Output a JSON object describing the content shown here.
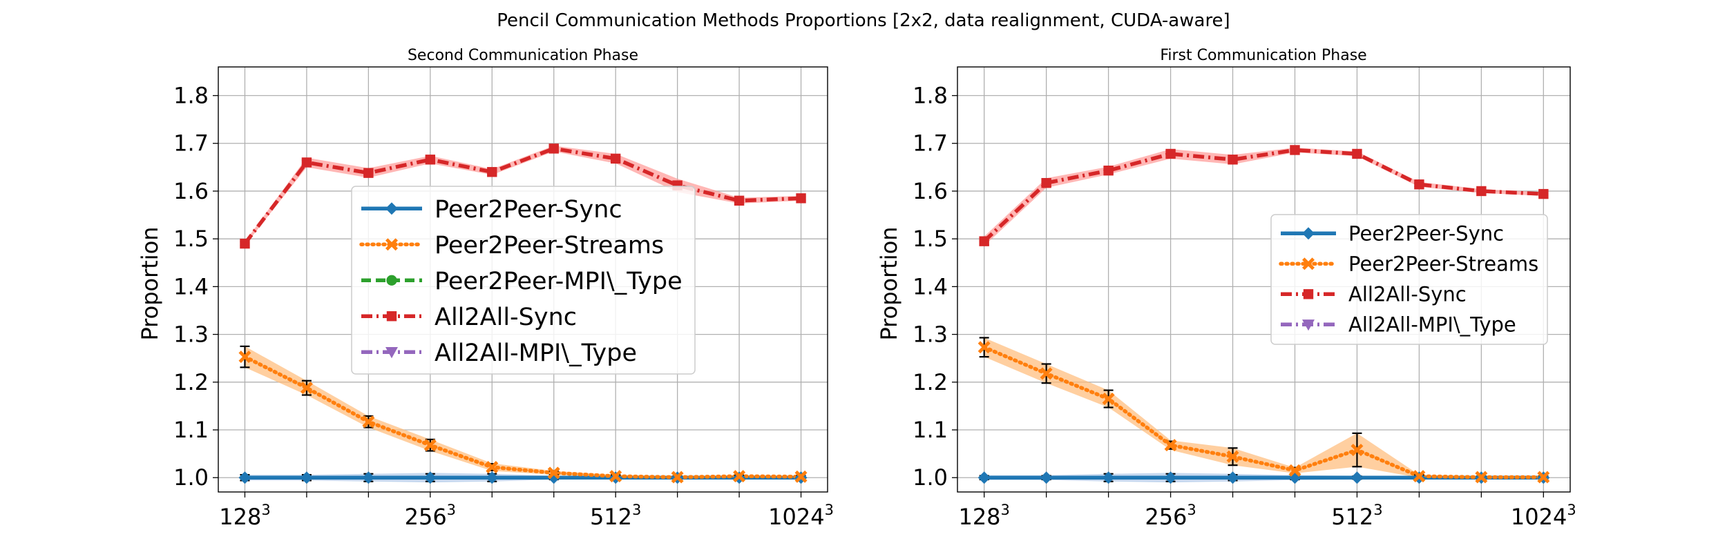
{
  "figure_title": "Pencil Communication Methods Proportions [2x2, data realignment, CUDA-aware]",
  "chart_data": [
    {
      "type": "line",
      "title": "Second Communication Phase",
      "xlabel": "",
      "ylabel": "Proportion",
      "ylim": [
        0.97,
        1.86
      ],
      "yticks": [
        "1.0",
        "1.1",
        "1.2",
        "1.3",
        "1.4",
        "1.5",
        "1.6",
        "1.7",
        "1.8"
      ],
      "xticks": [
        {
          "base": "128",
          "exp": "3",
          "x": 0
        },
        {
          "base": "256",
          "exp": "3",
          "x": 3
        },
        {
          "base": "512",
          "exp": "3",
          "x": 6
        },
        {
          "base": "1024",
          "exp": "3",
          "x": 9
        }
      ],
      "x": [
        0,
        1,
        2,
        3,
        4,
        5,
        6,
        7,
        8,
        9
      ],
      "grid": true,
      "legend_position": "center",
      "legend": [
        "Peer2Peer-Sync",
        "Peer2Peer-Streams",
        "Peer2Peer-MPI\\_Type",
        "All2All-Sync",
        "All2All-MPI\\_Type"
      ],
      "series": [
        {
          "name": "Peer2Peer-Sync",
          "key": "p2p_sync",
          "values": [
            1.0,
            1.0,
            1.0,
            1.0,
            1.0,
            1.0,
            1.0,
            1.0,
            1.0,
            1.0
          ],
          "err": [
            0.006,
            0.006,
            0.008,
            0.008,
            0.008,
            0.004,
            0.003,
            0.003,
            0.003,
            0.003
          ],
          "band": [
            0.006,
            0.006,
            0.008,
            0.01,
            0.008,
            0.004,
            0.003,
            0.003,
            0.003,
            0.003
          ]
        },
        {
          "name": "Peer2Peer-Streams",
          "key": "p2p_streams",
          "values": [
            1.253,
            1.188,
            1.117,
            1.068,
            1.022,
            1.01,
            1.003,
            1.001,
            1.003,
            1.002
          ],
          "err": [
            0.022,
            0.015,
            0.012,
            0.012,
            0.007,
            0.004,
            0.003,
            0.002,
            0.002,
            0.002
          ],
          "band": [
            0.022,
            0.015,
            0.012,
            0.012,
            0.008,
            0.004,
            0.003,
            0.002,
            0.002,
            0.002
          ]
        },
        {
          "name": "All2All-Sync",
          "key": "a2a_sync",
          "values": [
            1.49,
            1.66,
            1.638,
            1.666,
            1.64,
            1.689,
            1.668,
            1.612,
            1.58,
            1.585
          ],
          "err": [
            0.004,
            0.005,
            0.004,
            0.005,
            0.004,
            0.005,
            0.005,
            0.004,
            0.004,
            0.004
          ],
          "band": [
            0.004,
            0.01,
            0.01,
            0.008,
            0.006,
            0.006,
            0.01,
            0.014,
            0.006,
            0.005
          ]
        }
      ]
    },
    {
      "type": "line",
      "title": "First Communication Phase",
      "xlabel": "",
      "ylabel": "Proportion",
      "ylim": [
        0.97,
        1.86
      ],
      "yticks": [
        "1.0",
        "1.1",
        "1.2",
        "1.3",
        "1.4",
        "1.5",
        "1.6",
        "1.7",
        "1.8"
      ],
      "xticks": [
        {
          "base": "128",
          "exp": "3",
          "x": 0
        },
        {
          "base": "256",
          "exp": "3",
          "x": 3
        },
        {
          "base": "512",
          "exp": "3",
          "x": 6
        },
        {
          "base": "1024",
          "exp": "3",
          "x": 9
        }
      ],
      "x": [
        0,
        1,
        2,
        3,
        4,
        5,
        6,
        7,
        8,
        9
      ],
      "grid": true,
      "legend_position": "center-right",
      "legend": [
        "Peer2Peer-Sync",
        "Peer2Peer-Streams",
        "All2All-Sync",
        "All2All-MPI\\_Type"
      ],
      "series": [
        {
          "name": "Peer2Peer-Sync",
          "key": "p2p_sync",
          "values": [
            1.0,
            1.0,
            1.0,
            1.0,
            1.0,
            1.0,
            1.0,
            1.0,
            1.0,
            1.0
          ],
          "err": [
            0.004,
            0.004,
            0.008,
            0.008,
            0.006,
            0.004,
            0.003,
            0.003,
            0.003,
            0.003
          ],
          "band": [
            0.005,
            0.005,
            0.008,
            0.01,
            0.008,
            0.005,
            0.004,
            0.003,
            0.003,
            0.003
          ]
        },
        {
          "name": "Peer2Peer-Streams",
          "key": "p2p_streams",
          "values": [
            1.273,
            1.218,
            1.165,
            1.068,
            1.044,
            1.015,
            1.058,
            1.003,
            1.001,
            1.001
          ],
          "err": [
            0.02,
            0.02,
            0.018,
            0.008,
            0.018,
            0.006,
            0.035,
            0.003,
            0.002,
            0.002
          ],
          "band": [
            0.02,
            0.02,
            0.018,
            0.01,
            0.018,
            0.006,
            0.035,
            0.003,
            0.002,
            0.002
          ]
        },
        {
          "name": "All2All-Sync",
          "key": "a2a_sync",
          "values": [
            1.495,
            1.617,
            1.643,
            1.678,
            1.666,
            1.686,
            1.678,
            1.614,
            1.6,
            1.594
          ],
          "err": [
            0.008,
            0.007,
            0.007,
            0.007,
            0.007,
            0.004,
            0.004,
            0.004,
            0.004,
            0.004
          ],
          "band": [
            0.01,
            0.01,
            0.008,
            0.01,
            0.01,
            0.005,
            0.005,
            0.005,
            0.004,
            0.004
          ]
        }
      ]
    }
  ],
  "styles": {
    "p2p_sync": {
      "color": "#1f77b4",
      "band_color": "#aec7e8",
      "dash": "",
      "marker": "diamond"
    },
    "p2p_streams": {
      "color": "#ff7f0e",
      "band_color": "#ffbb78",
      "dash": "2 6",
      "marker": "x"
    },
    "p2p_mpi": {
      "color": "#2ca02c",
      "band_color": "#98df8a",
      "dash": "14 7",
      "marker": "circle"
    },
    "a2a_sync": {
      "color": "#d62728",
      "band_color": "#ff9896",
      "dash": "16 6 3 6",
      "marker": "square"
    },
    "a2a_mpi": {
      "color": "#9467bd",
      "band_color": "#c5b0d5",
      "dash": "16 6 3 6",
      "marker": "triangle-down"
    },
    "errorbar_color": "#000000",
    "grid_color": "#b0b0b0"
  }
}
